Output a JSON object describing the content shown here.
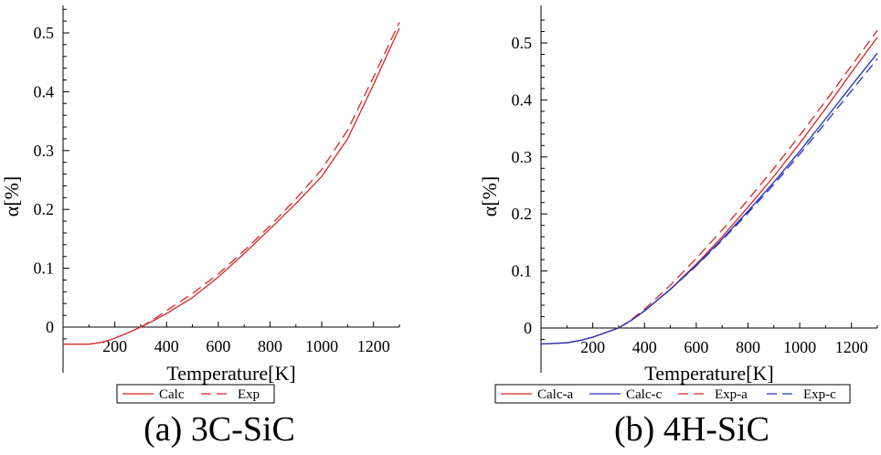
{
  "chart_data": [
    {
      "type": "line",
      "caption": "(a) 3C-SiC",
      "xlabel": "Temperature[K]",
      "ylabel": "α[%]",
      "xlim": [
        0,
        1300
      ],
      "ylim": [
        -0.04,
        0.55
      ],
      "xticks": [
        200,
        400,
        600,
        800,
        1000,
        1200
      ],
      "yticks": [
        0,
        0.1,
        0.2,
        0.3,
        0.4,
        0.5
      ],
      "ytick_labels": [
        "0",
        "0.1",
        "0.2",
        "0.3",
        "0.4",
        "0.5"
      ],
      "grid": false,
      "legend_position": "bottom",
      "series": [
        {
          "name": "Calc",
          "color": "#d62728",
          "dash": "solid",
          "x": [
            0,
            100,
            150,
            200,
            250,
            300,
            350,
            400,
            500,
            600,
            700,
            800,
            900,
            1000,
            1100,
            1200,
            1300
          ],
          "y": [
            -0.029,
            -0.029,
            -0.026,
            -0.019,
            -0.01,
            0.0,
            0.011,
            0.023,
            0.05,
            0.085,
            0.125,
            0.167,
            0.21,
            0.256,
            0.32,
            0.412,
            0.508
          ]
        },
        {
          "name": "Exp",
          "color": "#d62728",
          "dash": "dashed",
          "x": [
            300,
            350,
            400,
            500,
            600,
            700,
            800,
            900,
            1000,
            1100,
            1200,
            1300
          ],
          "y": [
            0.0,
            0.013,
            0.028,
            0.057,
            0.09,
            0.13,
            0.172,
            0.218,
            0.268,
            0.335,
            0.425,
            0.518
          ]
        }
      ]
    },
    {
      "type": "line",
      "caption": "(b) 4H-SiC",
      "xlabel": "Temperature[K]",
      "ylabel": "α[%]",
      "xlim": [
        0,
        1300
      ],
      "ylim": [
        -0.04,
        0.58
      ],
      "xticks": [
        200,
        400,
        600,
        800,
        1000,
        1200
      ],
      "yticks": [
        0,
        0.1,
        0.2,
        0.3,
        0.4,
        0.5
      ],
      "ytick_labels": [
        "0",
        "0.1",
        "0.2",
        "0.3",
        "0.4",
        "0.5"
      ],
      "grid": false,
      "legend_position": "bottom",
      "series": [
        {
          "name": "Calc-a",
          "color": "#d62728",
          "dash": "solid",
          "x": [
            0,
            100,
            150,
            200,
            250,
            300,
            350,
            400,
            500,
            600,
            700,
            800,
            900,
            1000,
            1100,
            1200,
            1300
          ],
          "y": [
            -0.028,
            -0.026,
            -0.022,
            -0.016,
            -0.008,
            0.0,
            0.014,
            0.03,
            0.068,
            0.112,
            0.16,
            0.212,
            0.266,
            0.324,
            0.385,
            0.448,
            0.51
          ]
        },
        {
          "name": "Calc-c",
          "color": "#2432b4",
          "dash": "solid",
          "x": [
            0,
            100,
            150,
            200,
            250,
            300,
            350,
            400,
            500,
            600,
            700,
            800,
            900,
            1000,
            1100,
            1200,
            1300
          ],
          "y": [
            -0.028,
            -0.026,
            -0.022,
            -0.016,
            -0.008,
            0.0,
            0.014,
            0.03,
            0.068,
            0.11,
            0.156,
            0.205,
            0.256,
            0.31,
            0.367,
            0.425,
            0.482
          ]
        },
        {
          "name": "Exp-a",
          "color": "#d62728",
          "dash": "dashed",
          "x": [
            300,
            350,
            400,
            500,
            600,
            700,
            800,
            900,
            1000,
            1100,
            1200,
            1300
          ],
          "y": [
            0.0,
            0.015,
            0.033,
            0.075,
            0.122,
            0.172,
            0.225,
            0.28,
            0.338,
            0.398,
            0.46,
            0.522
          ]
        },
        {
          "name": "Exp-c",
          "color": "#2432b4",
          "dash": "dashed",
          "x": [
            300,
            350,
            400,
            500,
            600,
            700,
            800,
            900,
            1000,
            1100,
            1200,
            1300
          ],
          "y": [
            0.0,
            0.014,
            0.03,
            0.068,
            0.109,
            0.154,
            0.202,
            0.252,
            0.305,
            0.36,
            0.416,
            0.472
          ]
        }
      ]
    }
  ]
}
